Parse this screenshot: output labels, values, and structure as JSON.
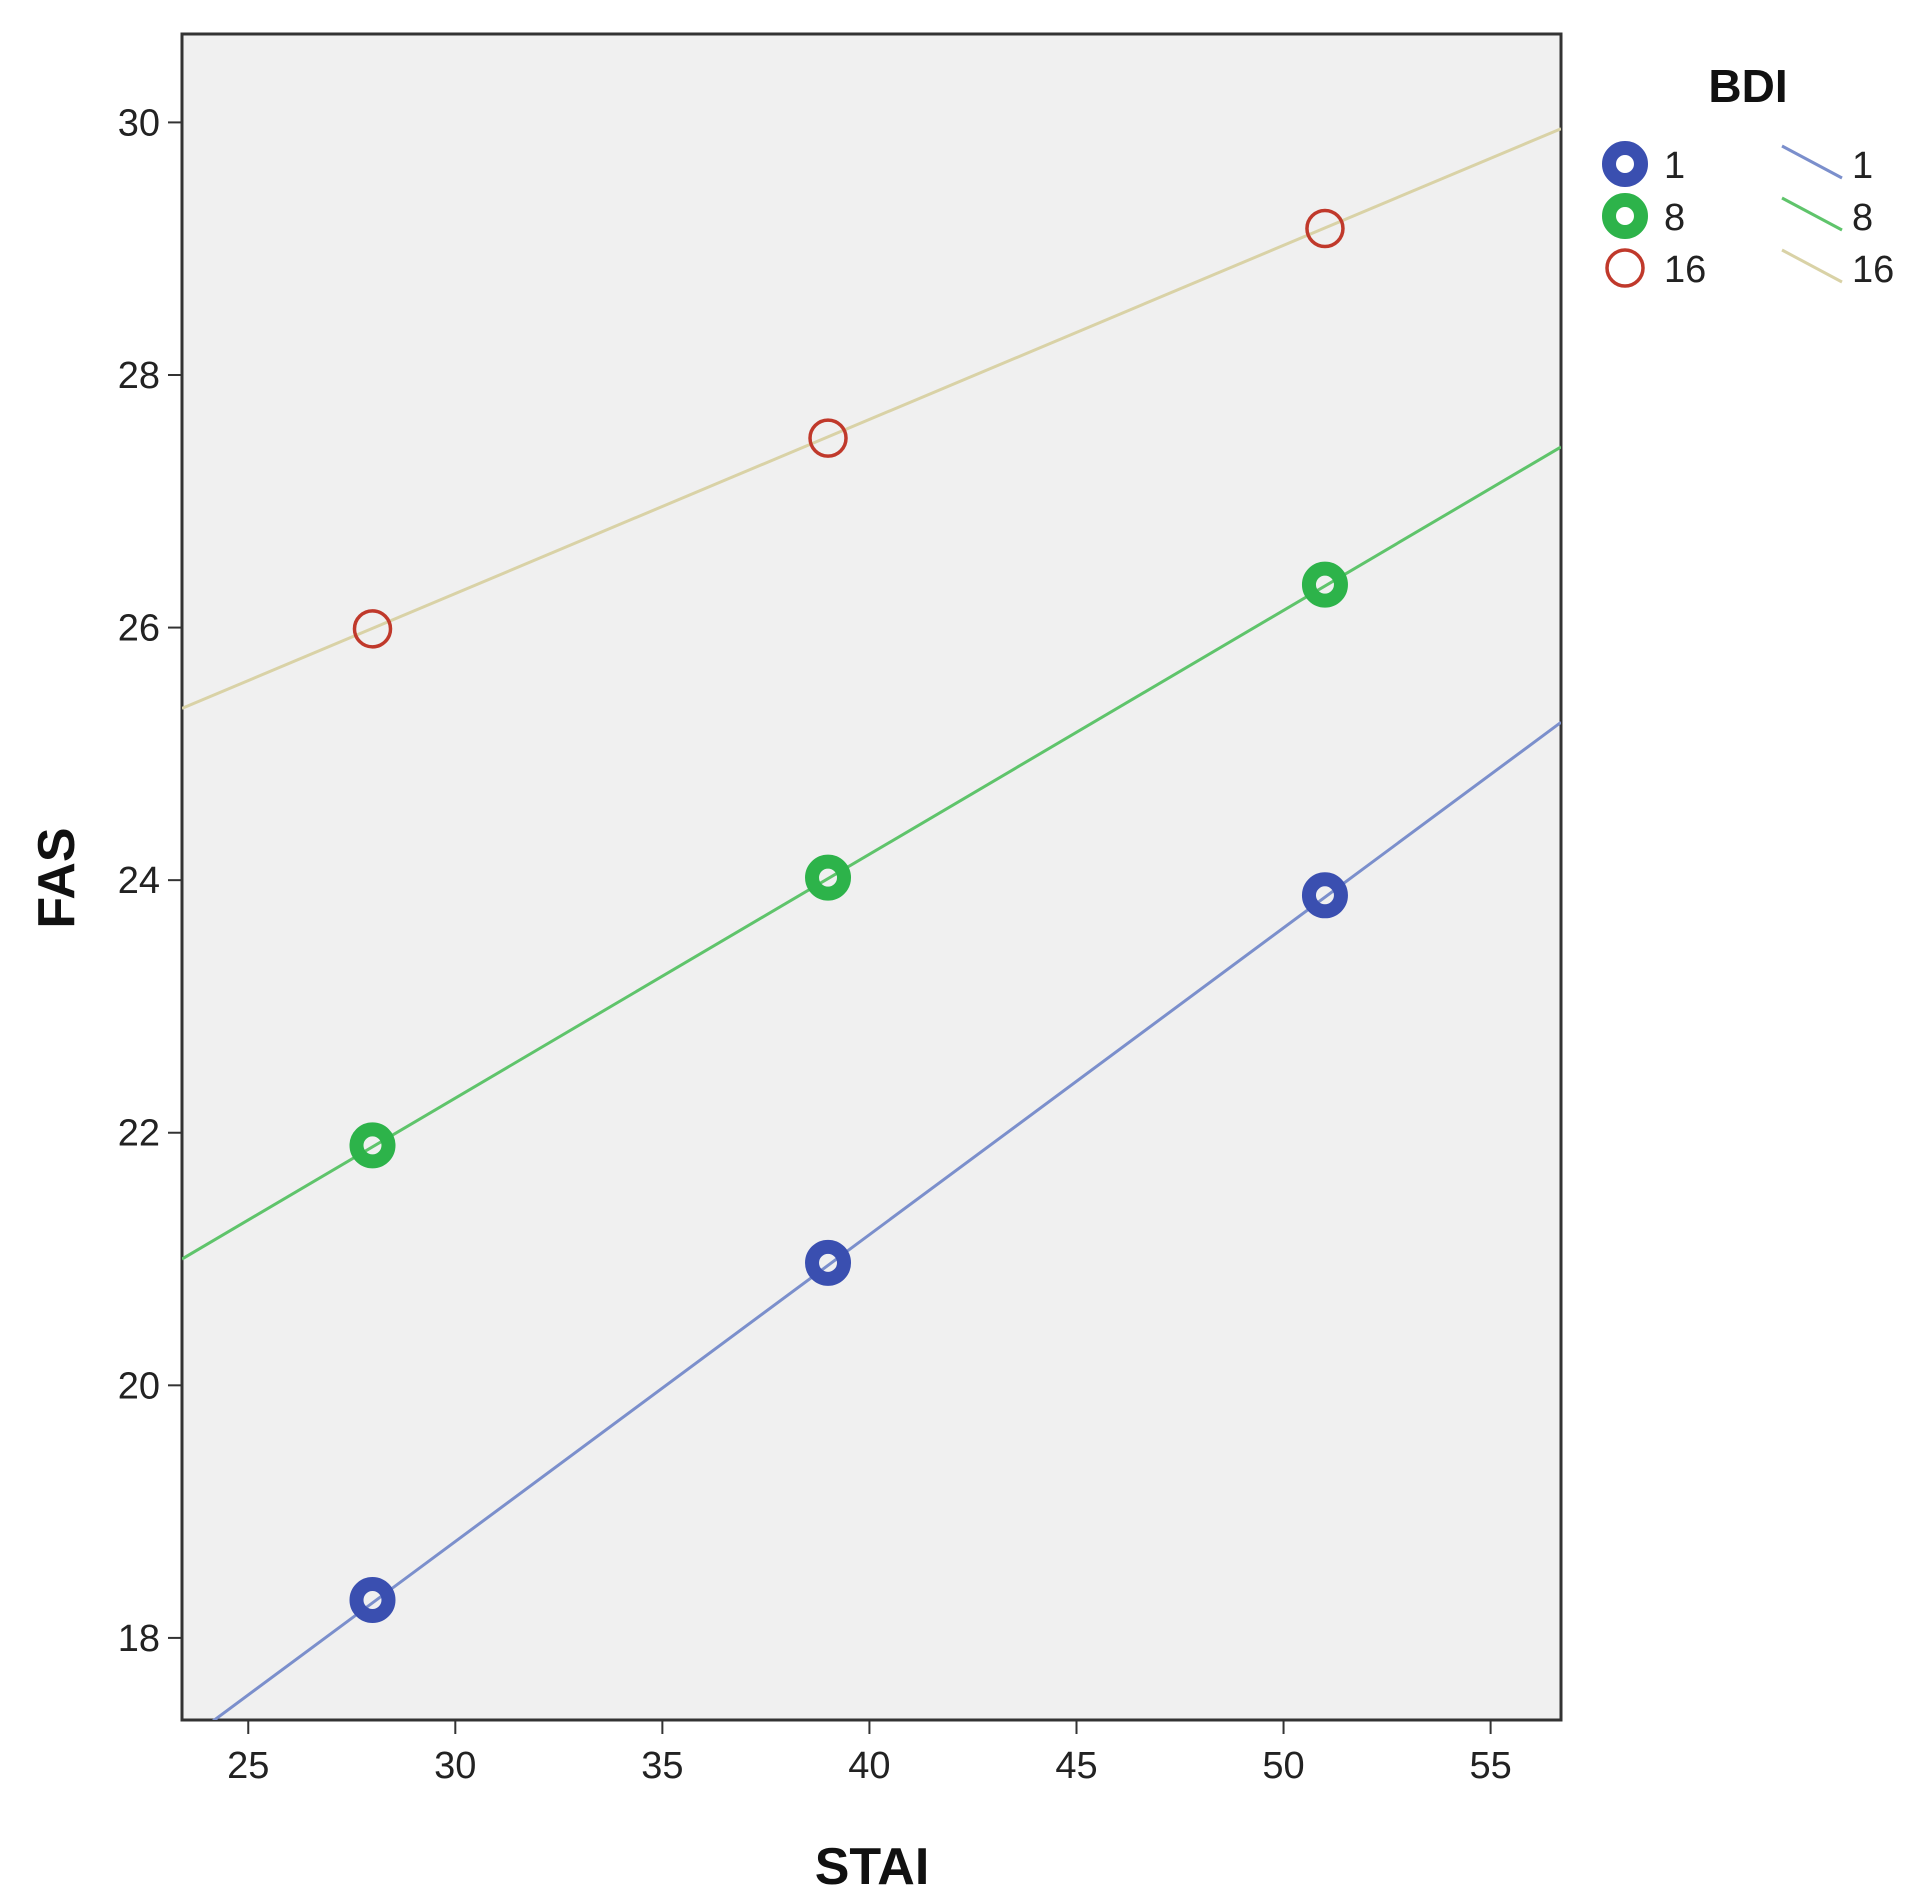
{
  "chart_data": {
    "type": "scatter",
    "xlabel": "STAI",
    "ylabel": "FAS",
    "xlim": [
      23.4,
      56.7
    ],
    "ylim": [
      17.35,
      30.7
    ],
    "xticks": [
      25,
      30,
      35,
      40,
      45,
      50,
      55
    ],
    "yticks": [
      18,
      20,
      22,
      24,
      26,
      28,
      30
    ],
    "legend": {
      "title": "BDI",
      "placement": "right",
      "marker_labels": [
        "1",
        "8",
        "16"
      ],
      "line_labels": [
        "1",
        "8",
        "16"
      ]
    },
    "background": "#f0f0f0",
    "series": [
      {
        "name": "1",
        "marker": "ring-thick",
        "marker_color": "#3a4fb0",
        "line_color": "#7b8fcc",
        "x": [
          28,
          39,
          51
        ],
        "y": [
          18.3,
          20.97,
          23.88
        ],
        "fit_line": {
          "x": [
            23.4,
            56.7
          ],
          "y": [
            17.16,
            25.25
          ]
        }
      },
      {
        "name": "8",
        "marker": "ring-thick",
        "marker_color": "#2db34a",
        "line_color": "#5fc46b",
        "x": [
          28,
          39,
          51
        ],
        "y": [
          21.9,
          24.02,
          26.34
        ],
        "fit_line": {
          "x": [
            23.4,
            56.7
          ],
          "y": [
            21.0,
            27.43
          ]
        }
      },
      {
        "name": "16",
        "marker": "ring-thin",
        "marker_color": "#c0392b",
        "line_color": "#d9d2a6",
        "x": [
          28,
          39,
          51
        ],
        "y": [
          25.99,
          27.5,
          29.16
        ],
        "fit_line": {
          "x": [
            23.4,
            56.7
          ],
          "y": [
            25.36,
            29.95
          ]
        }
      }
    ]
  }
}
